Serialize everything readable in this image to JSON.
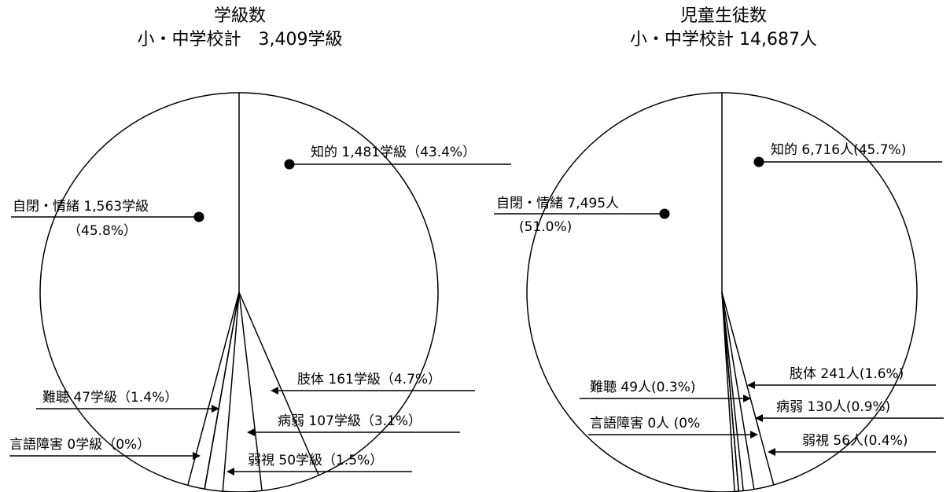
{
  "chart_data": [
    {
      "type": "pie",
      "title": "学級数",
      "subtitle": "小・中学校計　3,409学級",
      "slices": [
        {
          "name": "知的",
          "value": 1481,
          "unit": "学級",
          "percent": 43.4,
          "label": "知的 1,481学級（43.4%）"
        },
        {
          "name": "肢体",
          "value": 161,
          "unit": "学級",
          "percent": 4.7,
          "label": "肢体 161学級（4.7%）"
        },
        {
          "name": "病弱",
          "value": 107,
          "unit": "学級",
          "percent": 3.1,
          "label": "病弱 107学級（3.1%）"
        },
        {
          "name": "弱視",
          "value": 50,
          "unit": "学級",
          "percent": 1.5,
          "label": "弱視 50学級（1.5%）"
        },
        {
          "name": "言語障害",
          "value": 0,
          "unit": "学級",
          "percent": 0,
          "label": "言語障害 0学級（0%）"
        },
        {
          "name": "難聴",
          "value": 47,
          "unit": "学級",
          "percent": 1.4,
          "label": "難聴 47学級（1.4%）"
        },
        {
          "name": "自閉・情緒",
          "value": 1563,
          "unit": "学級",
          "percent": 45.8,
          "label": "自閉・情緒 1,563学級",
          "label2": "（45.8%）"
        }
      ]
    },
    {
      "type": "pie",
      "title": "児童生徒数",
      "subtitle": "小・中学校計 14,687人",
      "slices": [
        {
          "name": "知的",
          "value": 6716,
          "unit": "人",
          "percent": 45.7,
          "label": "知的 6,716人(45.7%)"
        },
        {
          "name": "肢体",
          "value": 241,
          "unit": "人",
          "percent": 1.6,
          "label": "肢体 241人(1.6%)"
        },
        {
          "name": "病弱",
          "value": 130,
          "unit": "人",
          "percent": 0.9,
          "label": "病弱 130人(0.9%)"
        },
        {
          "name": "弱視",
          "value": 56,
          "unit": "人",
          "percent": 0.4,
          "label": "弱視 56人(0.4%)"
        },
        {
          "name": "言語障害",
          "value": 0,
          "unit": "人",
          "percent": 0,
          "label": "言語障害 0人 (0%"
        },
        {
          "name": "難聴",
          "value": 49,
          "unit": "人",
          "percent": 0.3,
          "label": "難聴 49人(0.3%)"
        },
        {
          "name": "自閉・情緒",
          "value": 7495,
          "unit": "人",
          "percent": 51.0,
          "label": "自閉・情緒 7,495人",
          "label2": "(51.0%)"
        }
      ]
    }
  ],
  "colors": {
    "stroke": "#000000",
    "background": "#ffffff"
  }
}
